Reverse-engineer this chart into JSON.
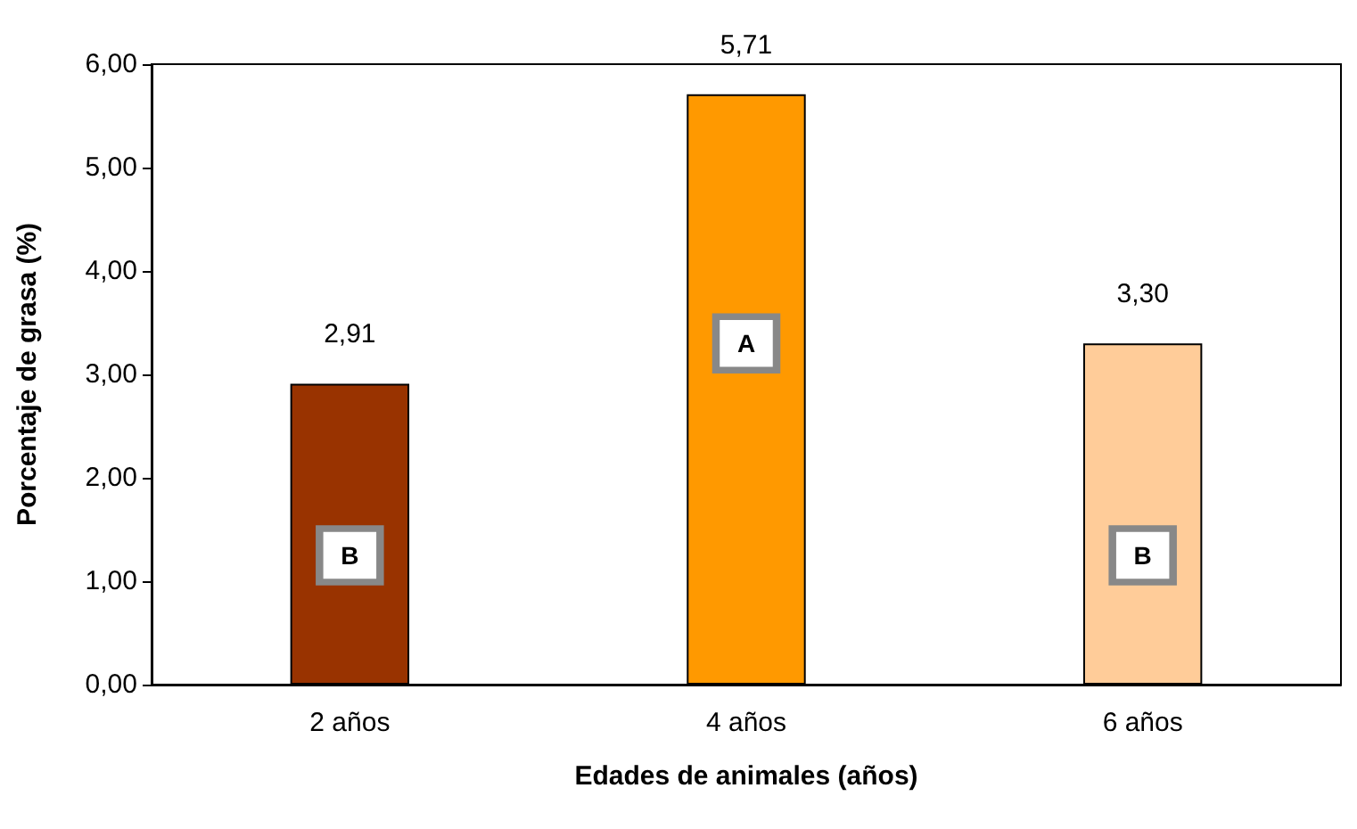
{
  "chart_data": {
    "type": "bar",
    "xlabel": "Edades de animales (años)",
    "ylabel": "Porcentaje de grasa (%)",
    "categories": [
      "2 años",
      "4 años",
      "6 años"
    ],
    "values": [
      2.91,
      5.71,
      3.3
    ],
    "colors": [
      "#993300",
      "#ff9900",
      "#ffcc99"
    ],
    "value_labels": [
      "2,91",
      "5,71",
      "3,30"
    ],
    "ylim": [
      0,
      6
    ],
    "yticks": [
      {
        "value": 0,
        "label": "0,00"
      },
      {
        "value": 1,
        "label": "1,00"
      },
      {
        "value": 2,
        "label": "2,00"
      },
      {
        "value": 3,
        "label": "3,00"
      },
      {
        "value": 4,
        "label": "4,00"
      },
      {
        "value": 5,
        "label": "5,00"
      },
      {
        "value": 6,
        "label": "6,00"
      }
    ],
    "annotations": [
      {
        "text": "B",
        "x": "2 años",
        "y": 1.25
      },
      {
        "text": "A",
        "x": "4 años",
        "y": 3.3
      },
      {
        "text": "B",
        "x": "6 años",
        "y": 1.25
      }
    ],
    "grid": false
  }
}
